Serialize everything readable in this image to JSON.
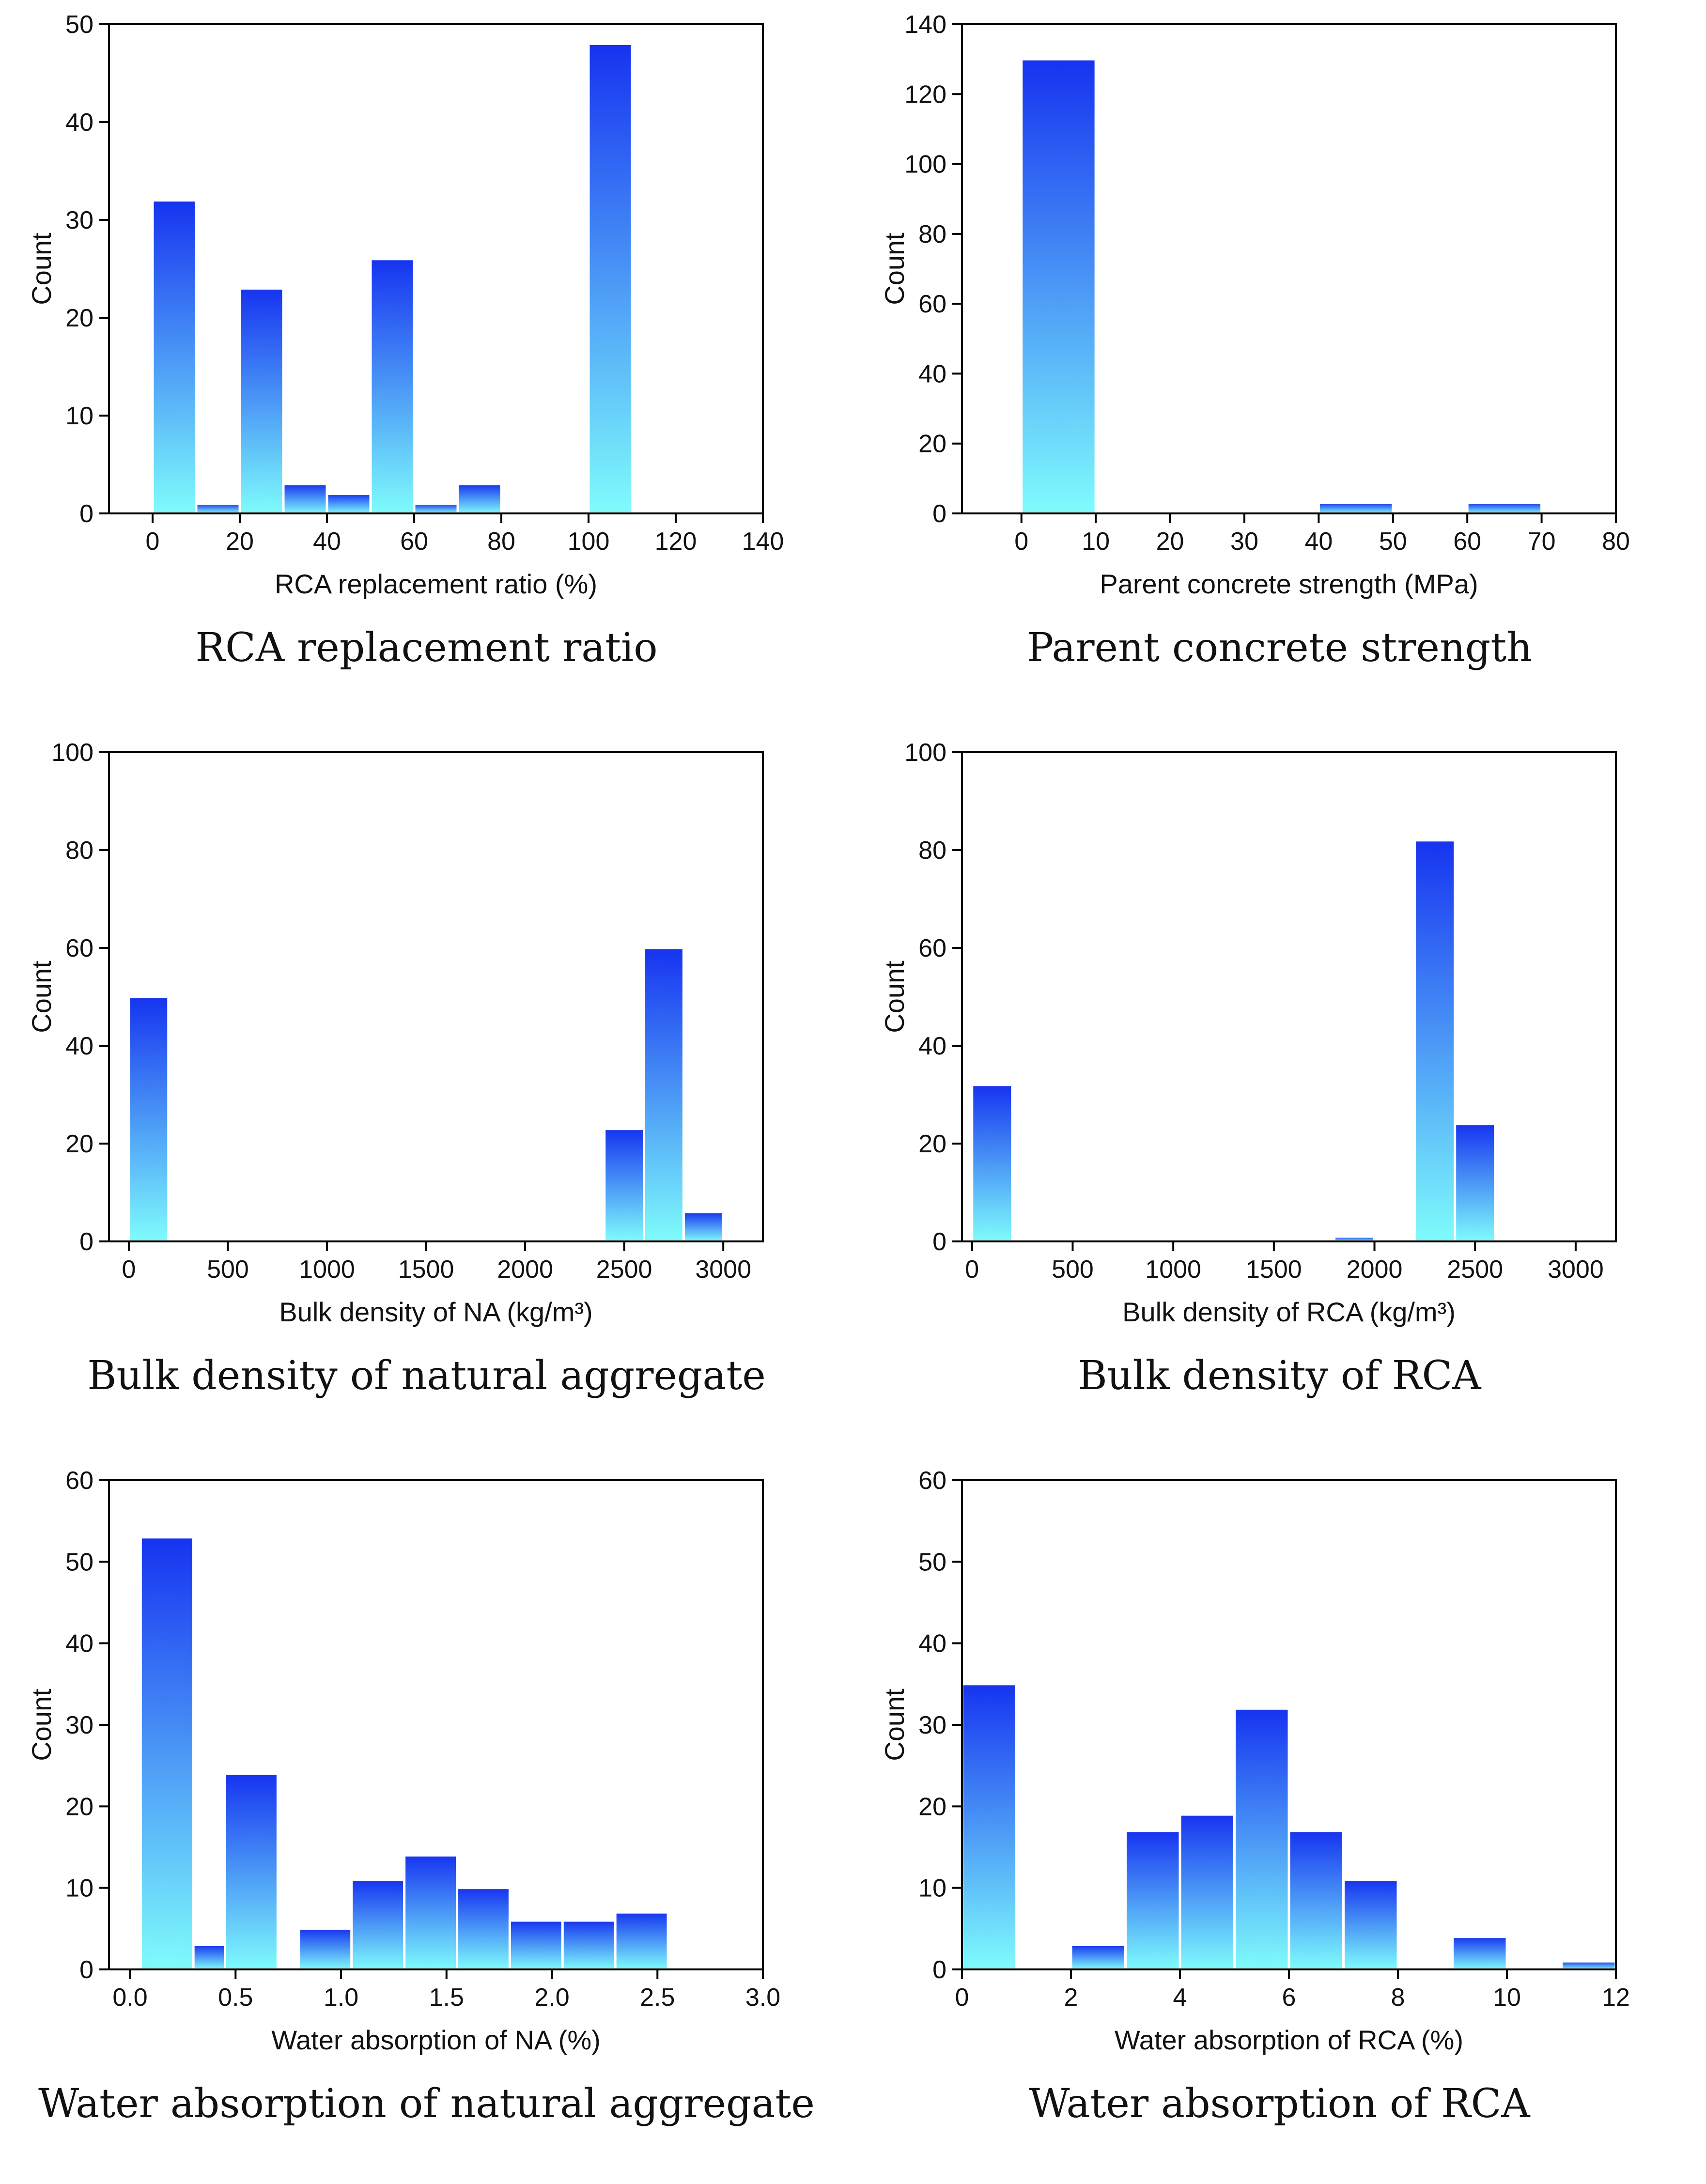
{
  "chart_data": [
    {
      "type": "bar",
      "title": "RCA replacement ratio",
      "xlabel": "RCA replacement ratio (%)",
      "ylabel": "Count",
      "xlim": [
        -10,
        140
      ],
      "ylim": [
        0,
        50
      ],
      "xticks": [
        0,
        20,
        40,
        60,
        80,
        100,
        120,
        140
      ],
      "xtick_labels": [
        "0",
        "20",
        "40",
        "60",
        "80",
        "100",
        "120",
        "140"
      ],
      "yticks": [
        0,
        10,
        20,
        30,
        40,
        50
      ],
      "ytick_labels": [
        "0",
        "10",
        "20",
        "30",
        "40",
        "50"
      ],
      "bins": [
        {
          "x0": 0,
          "x1": 10,
          "count": 32
        },
        {
          "x0": 10,
          "x1": 20,
          "count": 1
        },
        {
          "x0": 20,
          "x1": 30,
          "count": 23
        },
        {
          "x0": 30,
          "x1": 40,
          "count": 3
        },
        {
          "x0": 40,
          "x1": 50,
          "count": 2
        },
        {
          "x0": 50,
          "x1": 60,
          "count": 26
        },
        {
          "x0": 60,
          "x1": 70,
          "count": 1
        },
        {
          "x0": 70,
          "x1": 80,
          "count": 3
        },
        {
          "x0": 100,
          "x1": 110,
          "count": 48
        }
      ]
    },
    {
      "type": "bar",
      "title": "Parent concrete strength",
      "xlabel": "Parent concrete strength (MPa)",
      "ylabel": "Count",
      "xlim": [
        -8,
        80
      ],
      "ylim": [
        0,
        140
      ],
      "xticks": [
        0,
        10,
        20,
        30,
        40,
        50,
        60,
        70,
        80
      ],
      "xtick_labels": [
        "0",
        "10",
        "20",
        "30",
        "40",
        "50",
        "60",
        "70",
        "80"
      ],
      "yticks": [
        0,
        20,
        40,
        60,
        80,
        100,
        120,
        140
      ],
      "ytick_labels": [
        "0",
        "20",
        "40",
        "60",
        "80",
        "100",
        "120",
        "140"
      ],
      "bins": [
        {
          "x0": 0,
          "x1": 10,
          "count": 130
        },
        {
          "x0": 40,
          "x1": 50,
          "count": 3
        },
        {
          "x0": 60,
          "x1": 70,
          "count": 3
        }
      ]
    },
    {
      "type": "bar",
      "title": "Bulk density of natural aggregate",
      "xlabel": "Bulk density of NA (kg/m³)",
      "ylabel": "Count",
      "xlim": [
        -100,
        3200
      ],
      "ylim": [
        0,
        100
      ],
      "xticks": [
        0,
        500,
        1000,
        1500,
        2000,
        2500,
        3000
      ],
      "xtick_labels": [
        "0",
        "500",
        "1000",
        "1500",
        "2000",
        "2500",
        "3000"
      ],
      "yticks": [
        0,
        20,
        40,
        60,
        80,
        100
      ],
      "ytick_labels": [
        "0",
        "20",
        "40",
        "60",
        "80",
        "100"
      ],
      "bins": [
        {
          "x0": 0,
          "x1": 200,
          "count": 50
        },
        {
          "x0": 2400,
          "x1": 2600,
          "count": 23
        },
        {
          "x0": 2600,
          "x1": 2800,
          "count": 60
        },
        {
          "x0": 2800,
          "x1": 3000,
          "count": 6
        }
      ]
    },
    {
      "type": "bar",
      "title": "Bulk density of RCA",
      "xlabel": "Bulk density of RCA (kg/m³)",
      "ylabel": "Count",
      "xlim": [
        -50,
        3200
      ],
      "ylim": [
        0,
        100
      ],
      "xticks": [
        0,
        500,
        1000,
        1500,
        2000,
        2500,
        3000
      ],
      "xtick_labels": [
        "0",
        "500",
        "1000",
        "1500",
        "2000",
        "2500",
        "3000"
      ],
      "yticks": [
        0,
        20,
        40,
        60,
        80,
        100
      ],
      "ytick_labels": [
        "0",
        "20",
        "40",
        "60",
        "80",
        "100"
      ],
      "bins": [
        {
          "x0": 0,
          "x1": 200,
          "count": 32
        },
        {
          "x0": 1800,
          "x1": 2000,
          "count": 1
        },
        {
          "x0": 2200,
          "x1": 2400,
          "count": 82
        },
        {
          "x0": 2400,
          "x1": 2600,
          "count": 24
        }
      ]
    },
    {
      "type": "bar",
      "title": "Water absorption of natural aggregate",
      "xlabel": "Water absorption of NA (%)",
      "ylabel": "Count",
      "xlim": [
        -0.1,
        3.0
      ],
      "ylim": [
        0,
        60
      ],
      "xticks": [
        0,
        0.5,
        1.0,
        1.5,
        2.0,
        2.5,
        3.0
      ],
      "xtick_labels": [
        "0.0",
        "0.5",
        "1.0",
        "1.5",
        "2.0",
        "2.5",
        "3.0"
      ],
      "yticks": [
        0,
        10,
        20,
        30,
        40,
        50,
        60
      ],
      "ytick_labels": [
        "0",
        "10",
        "20",
        "30",
        "40",
        "50",
        "60"
      ],
      "bins": [
        {
          "x0": 0.05,
          "x1": 0.3,
          "count": 53
        },
        {
          "x0": 0.3,
          "x1": 0.45,
          "count": 3
        },
        {
          "x0": 0.45,
          "x1": 0.7,
          "count": 24
        },
        {
          "x0": 0.8,
          "x1": 1.05,
          "count": 5
        },
        {
          "x0": 1.05,
          "x1": 1.3,
          "count": 11
        },
        {
          "x0": 1.3,
          "x1": 1.55,
          "count": 14
        },
        {
          "x0": 1.55,
          "x1": 1.8,
          "count": 10
        },
        {
          "x0": 1.8,
          "x1": 2.05,
          "count": 6
        },
        {
          "x0": 2.05,
          "x1": 2.3,
          "count": 6
        },
        {
          "x0": 2.3,
          "x1": 2.55,
          "count": 7
        }
      ]
    },
    {
      "type": "bar",
      "title": "Water absorption of RCA",
      "xlabel": "Water absorption of RCA (%)",
      "ylabel": "Count",
      "xlim": [
        0,
        12
      ],
      "ylim": [
        0,
        60
      ],
      "xticks": [
        0,
        2,
        4,
        6,
        8,
        10,
        12
      ],
      "xtick_labels": [
        "0",
        "2",
        "4",
        "6",
        "8",
        "10",
        "12"
      ],
      "yticks": [
        0,
        10,
        20,
        30,
        40,
        50,
        60
      ],
      "ytick_labels": [
        "0",
        "10",
        "20",
        "30",
        "40",
        "50",
        "60"
      ],
      "bins": [
        {
          "x0": 0,
          "x1": 1,
          "count": 35
        },
        {
          "x0": 2,
          "x1": 3,
          "count": 3
        },
        {
          "x0": 3,
          "x1": 4,
          "count": 17
        },
        {
          "x0": 4,
          "x1": 5,
          "count": 19
        },
        {
          "x0": 5,
          "x1": 6,
          "count": 32
        },
        {
          "x0": 6,
          "x1": 7,
          "count": 17
        },
        {
          "x0": 7,
          "x1": 8,
          "count": 11
        },
        {
          "x0": 9,
          "x1": 10,
          "count": 4
        },
        {
          "x0": 11,
          "x1": 12,
          "count": 1
        }
      ]
    }
  ],
  "colors": {
    "bar_top": "#1633f0",
    "bar_bottom": "#7ffcfc",
    "bar_edge": "#ffffff",
    "axis": "#000000"
  }
}
